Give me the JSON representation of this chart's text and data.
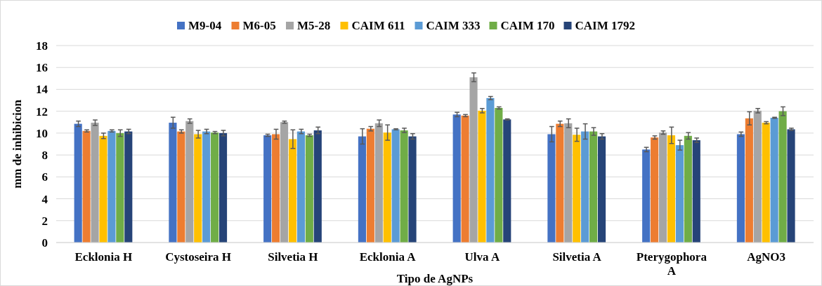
{
  "chart_data": {
    "type": "bar",
    "xlabel": "Tipo de AgNPs",
    "ylabel": "mm de inhibicion",
    "categories": [
      "Ecklonia H",
      "Cystoseira H",
      "Silvetia H",
      "Ecklonia A",
      "Ulva A",
      "Silvetia A",
      "Pterygophora A",
      "AgNO3"
    ],
    "ylim": [
      0,
      18
    ],
    "yticks": [
      0,
      2,
      4,
      6,
      8,
      10,
      12,
      14,
      16,
      18
    ],
    "grid": "y",
    "legend": "top",
    "series": [
      {
        "name": "M9-04",
        "color": "#4472c4",
        "values": [
          10.85,
          10.95,
          9.8,
          9.7,
          11.7,
          9.9,
          8.5,
          9.9
        ],
        "errors": [
          0.25,
          0.5,
          0.1,
          0.7,
          0.2,
          0.7,
          0.2,
          0.2
        ]
      },
      {
        "name": "M6-05",
        "color": "#ed7d31",
        "values": [
          10.2,
          10.15,
          9.9,
          10.4,
          11.6,
          10.85,
          9.6,
          11.35
        ],
        "errors": [
          0.1,
          0.15,
          0.45,
          0.2,
          0.1,
          0.25,
          0.15,
          0.6
        ]
      },
      {
        "name": "M5-28",
        "color": "#a5a5a5",
        "values": [
          10.95,
          11.1,
          11.0,
          10.9,
          15.1,
          10.9,
          10.05,
          12.05
        ],
        "errors": [
          0.25,
          0.2,
          0.1,
          0.3,
          0.4,
          0.4,
          0.15,
          0.2
        ]
      },
      {
        "name": "CAIM 611",
        "color": "#ffc000",
        "values": [
          9.75,
          9.9,
          9.45,
          10.05,
          12.05,
          9.85,
          9.8,
          10.95
        ],
        "errors": [
          0.25,
          0.35,
          0.85,
          0.7,
          0.2,
          0.6,
          0.75,
          0.1
        ]
      },
      {
        "name": "CAIM 333",
        "color": "#5b9bd5",
        "values": [
          10.2,
          10.15,
          10.15,
          10.35,
          13.2,
          10.15,
          8.9,
          11.4
        ],
        "errors": [
          0.1,
          0.2,
          0.2,
          0.05,
          0.15,
          0.7,
          0.45,
          0.05
        ]
      },
      {
        "name": "CAIM 170",
        "color": "#70ad47",
        "values": [
          10.0,
          10.05,
          9.8,
          10.25,
          12.3,
          10.15,
          9.75,
          12.0
        ],
        "errors": [
          0.3,
          0.1,
          0.1,
          0.2,
          0.1,
          0.35,
          0.3,
          0.4
        ]
      },
      {
        "name": "CAIM 1792",
        "color": "#264478",
        "values": [
          10.15,
          10.0,
          10.25,
          9.7,
          11.25,
          9.7,
          9.35,
          10.35
        ],
        "errors": [
          0.2,
          0.25,
          0.3,
          0.25,
          0.05,
          0.25,
          0.2,
          0.1
        ]
      }
    ]
  }
}
